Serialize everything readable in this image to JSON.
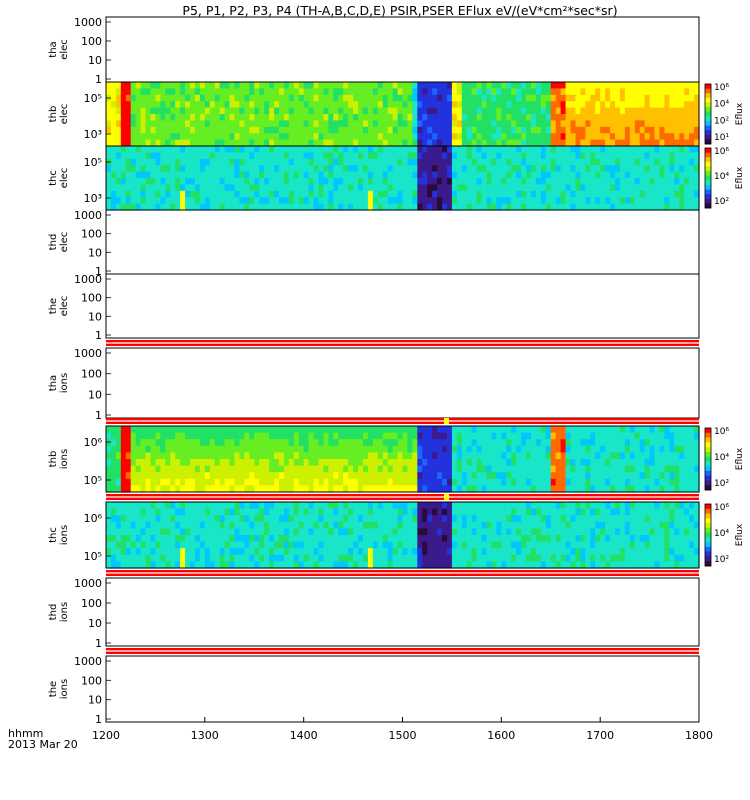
{
  "chart_data": {
    "type": "heatmap",
    "title": "P5, P1, P2, P3, P4 (TH-A,B,C,D,E) PSIR,PSER EFlux eV/(eV*cm²*sec*sr)",
    "x_label_line1": "hhmm",
    "x_label_line2": "2013 Mar 20",
    "xlim": [
      1200,
      1800
    ],
    "x_ticks": [
      "1200",
      "1300",
      "1400",
      "1500",
      "1600",
      "1700",
      "1800"
    ],
    "colorbar_label": "Eflux",
    "panels": [
      {
        "name": "tha elec",
        "probe": "tha",
        "species": "elec",
        "kind": "empty",
        "ticks": [
          "1000",
          "100",
          "10",
          "1"
        ]
      },
      {
        "name": "thb elec",
        "probe": "thb",
        "species": "elec",
        "kind": "spec",
        "ticks": [
          "10⁵",
          "10³"
        ],
        "colorbar_ticks": [
          "10⁶",
          "10⁴",
          "10²",
          "10¹"
        ]
      },
      {
        "name": "thc elec",
        "probe": "thc",
        "species": "elec",
        "kind": "spec",
        "ticks": [
          "10⁵",
          "10³"
        ],
        "colorbar_ticks": [
          "10⁶",
          "10⁴",
          "10²"
        ]
      },
      {
        "name": "thd elec",
        "probe": "thd",
        "species": "elec",
        "kind": "empty",
        "ticks": [
          "1000",
          "100",
          "10",
          "1"
        ]
      },
      {
        "name": "the elec",
        "probe": "the",
        "species": "elec",
        "kind": "empty",
        "ticks": [
          "1000",
          "100",
          "10",
          "1"
        ]
      },
      {
        "name": "tha ions",
        "probe": "tha",
        "species": "ions",
        "kind": "empty",
        "ticks": [
          "1000",
          "100",
          "10",
          "1"
        ]
      },
      {
        "name": "thb ions",
        "probe": "thb",
        "species": "ions",
        "kind": "spec",
        "ticks": [
          "10⁶",
          "10⁵"
        ],
        "colorbar_ticks": [
          "10⁶",
          "10⁴",
          "10²"
        ]
      },
      {
        "name": "thc ions",
        "probe": "thc",
        "species": "ions",
        "kind": "spec",
        "ticks": [
          "10⁶",
          "10⁵"
        ],
        "colorbar_ticks": [
          "10⁶",
          "10⁴",
          "10²"
        ]
      },
      {
        "name": "thd ions",
        "probe": "thd",
        "species": "ions",
        "kind": "empty",
        "ticks": [
          "1000",
          "100",
          "10",
          "1"
        ]
      },
      {
        "name": "the ions",
        "probe": "the",
        "species": "ions",
        "kind": "empty",
        "ticks": [
          "1000",
          "100",
          "10",
          "1"
        ]
      }
    ],
    "colormap": [
      "#2a0a3a",
      "#3b1a8c",
      "#2233dd",
      "#1a66ff",
      "#00c8ff",
      "#19e6c8",
      "#22e066",
      "#66ee22",
      "#ccf000",
      "#ffff00",
      "#ffc000",
      "#ff6a00",
      "#ff0000"
    ],
    "colors": {
      "flag_red": "#ff0000",
      "flag_white": "#ffffff",
      "flag_yellow": "#ffff00"
    }
  }
}
